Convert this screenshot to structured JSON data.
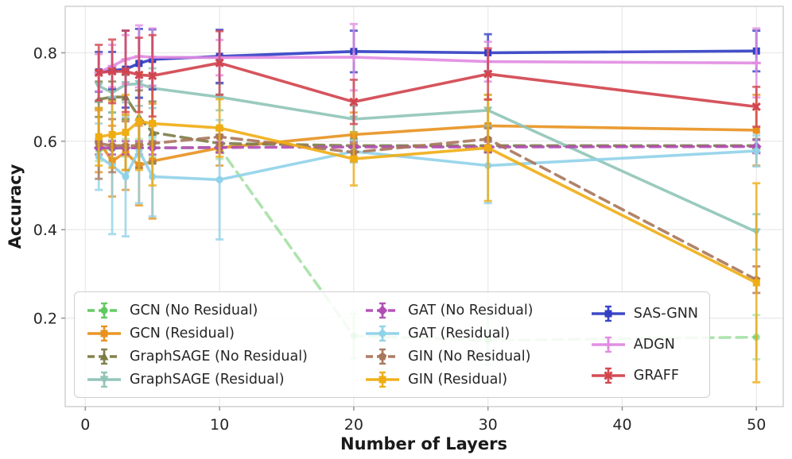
{
  "figure": {
    "background": "#ffffff"
  },
  "chart_data": {
    "type": "line",
    "title": "",
    "xlabel": "Number of Layers",
    "ylabel": "Accuracy",
    "x": [
      1,
      2,
      3,
      4,
      5,
      10,
      20,
      30,
      50
    ],
    "xlim": [
      -1.5,
      52
    ],
    "ylim": [
      0,
      0.905
    ],
    "xticks": [
      0,
      10,
      20,
      30,
      40,
      50
    ],
    "xtick_labels": [
      "0",
      "10",
      "20",
      "30",
      "40",
      "50"
    ],
    "yticks": [
      0.2,
      0.4,
      0.6,
      0.8
    ],
    "ytick_labels": [
      "0.2",
      "0.4",
      "0.6",
      "0.8"
    ],
    "grid": true,
    "error_bars": true,
    "legend_position": "lower-left",
    "legend_columns": [
      4,
      4,
      3
    ],
    "series": [
      {
        "name": "GCN (No Residual)",
        "color": "#5EC95E",
        "dash": true,
        "marker": "circle",
        "alpha": 0.5,
        "values": [
          0.58,
          0.583,
          0.585,
          0.585,
          0.585,
          0.585,
          0.16,
          0.15,
          0.157
        ],
        "errors": [
          0.025,
          0.02,
          0.02,
          0.02,
          0.02,
          0.025,
          0.05,
          0.055,
          0.05
        ]
      },
      {
        "name": "GCN (Residual)",
        "color": "#E8911E",
        "dash": false,
        "marker": "square",
        "alpha": 0.9,
        "values": [
          0.6,
          0.555,
          0.575,
          0.545,
          0.555,
          0.585,
          0.615,
          0.635,
          0.625
        ],
        "errors": [
          0.07,
          0.08,
          0.085,
          0.09,
          0.13,
          0.04,
          0.05,
          0.06,
          0.08
        ]
      },
      {
        "name": "GraphSAGE (No Residual)",
        "color": "#7D7C47",
        "dash": true,
        "marker": "triangle",
        "alpha": 0.9,
        "values": [
          0.695,
          0.7,
          0.7,
          0.655,
          0.62,
          0.595,
          0.59,
          0.59,
          0.59
        ],
        "errors": [
          0.04,
          0.035,
          0.05,
          0.06,
          0.07,
          0.02,
          0.015,
          0.015,
          0.015
        ]
      },
      {
        "name": "GraphSAGE (Residual)",
        "color": "#8FC4B7",
        "dash": false,
        "marker": "triangle-down",
        "alpha": 0.9,
        "values": [
          0.725,
          0.71,
          0.728,
          0.73,
          0.72,
          0.7,
          0.65,
          0.67,
          0.395
        ],
        "errors": [
          0.035,
          0.045,
          0.04,
          0.05,
          0.045,
          0.03,
          0.03,
          0.035,
          0.04
        ]
      },
      {
        "name": "GAT (No Residual)",
        "color": "#B14DB5",
        "dash": true,
        "marker": "diamond",
        "alpha": 0.9,
        "values": [
          0.585,
          0.585,
          0.585,
          0.585,
          0.585,
          0.586,
          0.587,
          0.587,
          0.588
        ],
        "errors": [
          0.015,
          0.015,
          0.015,
          0.015,
          0.015,
          0.012,
          0.012,
          0.012,
          0.015
        ]
      },
      {
        "name": "GAT (Residual)",
        "color": "#90D2E9",
        "dash": false,
        "marker": "circle",
        "alpha": 0.9,
        "values": [
          0.565,
          0.545,
          0.52,
          0.58,
          0.52,
          0.513,
          0.577,
          0.545,
          0.578
        ],
        "errors": [
          0.075,
          0.155,
          0.135,
          0.12,
          0.09,
          0.135,
          0.025,
          0.085,
          0.035
        ]
      },
      {
        "name": "GIN (No Residual)",
        "color": "#A9765B",
        "dash": true,
        "marker": "pentagon",
        "alpha": 0.9,
        "values": [
          0.595,
          0.59,
          0.59,
          0.59,
          0.595,
          0.61,
          0.575,
          0.605,
          0.287
        ],
        "errors": [
          0.08,
          0.06,
          0.055,
          0.05,
          0.04,
          0.02,
          0.02,
          0.025,
          0.03
        ]
      },
      {
        "name": "GIN (Residual)",
        "color": "#EFAD13",
        "dash": false,
        "marker": "square",
        "alpha": 0.9,
        "values": [
          0.61,
          0.615,
          0.62,
          0.645,
          0.64,
          0.63,
          0.56,
          0.585,
          0.28
        ],
        "errors": [
          0.065,
          0.075,
          0.085,
          0.11,
          0.14,
          0.065,
          0.06,
          0.12,
          0.225
        ]
      },
      {
        "name": "SAS-GNN",
        "color": "#3340C4",
        "dash": false,
        "marker": "square",
        "alpha": 0.92,
        "values": [
          0.757,
          0.76,
          0.763,
          0.776,
          0.785,
          0.792,
          0.803,
          0.8,
          0.804
        ],
        "errors": [
          0.045,
          0.042,
          0.087,
          0.078,
          0.068,
          0.06,
          0.047,
          0.042,
          0.046
        ]
      },
      {
        "name": "ADGN",
        "color": "#E18BE1",
        "dash": false,
        "marker": "plus",
        "alpha": 0.9,
        "values": [
          0.755,
          0.77,
          0.785,
          0.792,
          0.79,
          0.789,
          0.79,
          0.78,
          0.777
        ],
        "errors": [
          0.042,
          0.048,
          0.055,
          0.07,
          0.065,
          0.04,
          0.075,
          0.045,
          0.078
        ]
      },
      {
        "name": "GRAFF",
        "color": "#D2454F",
        "dash": false,
        "marker": "x",
        "alpha": 0.92,
        "values": [
          0.755,
          0.758,
          0.758,
          0.75,
          0.748,
          0.777,
          0.689,
          0.752,
          0.678
        ],
        "errors": [
          0.063,
          0.072,
          0.092,
          0.084,
          0.092,
          0.072,
          0.05,
          0.058,
          0.045
        ]
      }
    ]
  },
  "style_colors": {
    "grid": "#ebebeb",
    "spine": "#d4d4d4",
    "tick": "#9a9a9a",
    "tick_label": "#262626",
    "axis_label": "#1a1a1a",
    "legend_border": "#cfcfcf"
  }
}
